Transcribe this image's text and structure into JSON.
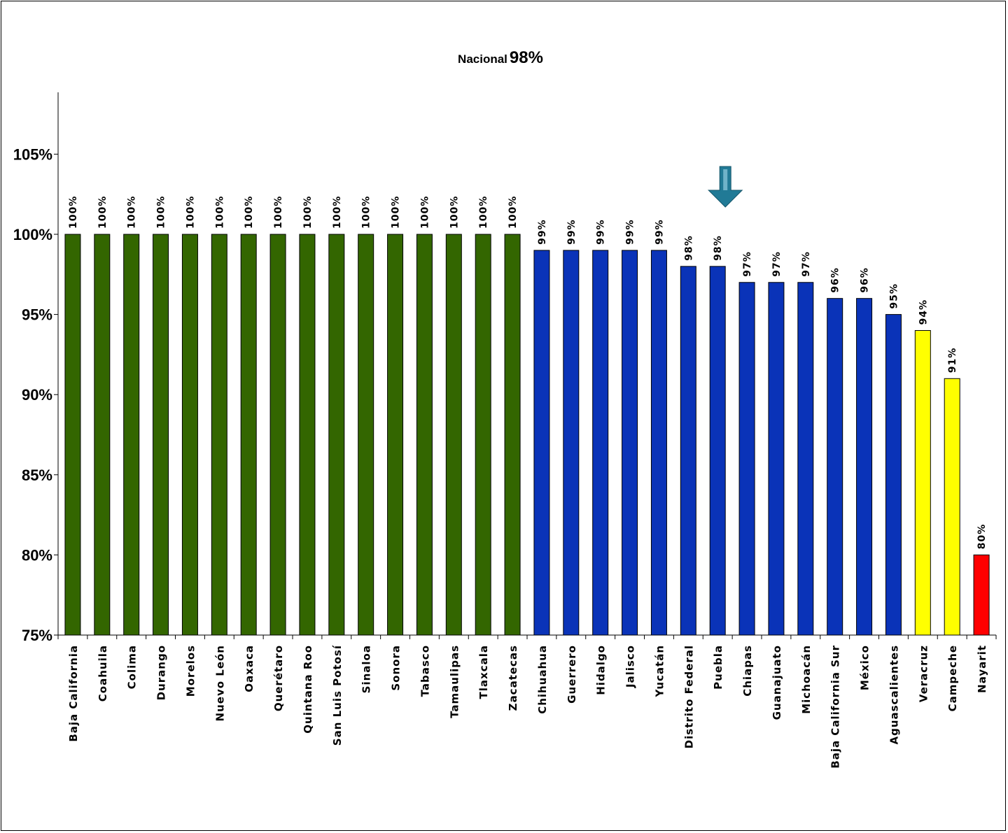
{
  "chart_data": {
    "type": "bar",
    "title_prefix": "Nacional",
    "title_value": "98%",
    "xlabel": "",
    "ylabel": "",
    "ylim": [
      75,
      110
    ],
    "yticks": [
      75,
      80,
      85,
      90,
      95,
      100,
      105
    ],
    "ytick_labels": [
      "75%",
      "80%",
      "85%",
      "90%",
      "95%",
      "100%",
      "105%"
    ],
    "grid": false,
    "legend": "none",
    "categories": [
      "Baja California",
      "Coahuila",
      "Colima",
      "Durango",
      "Morelos",
      "Nuevo León",
      "Oaxaca",
      "Querétaro",
      "Quintana Roo",
      "San Luis Potosí",
      "Sinaloa",
      "Sonora",
      "Tabasco",
      "Tamaulipas",
      "Tlaxcala",
      "Zacatecas",
      "Chihuahua",
      "Guerrero",
      "Hidalgo",
      "Jalisco",
      "Yucatán",
      "Distrito Federal",
      "Puebla",
      "Chiapas",
      "Guanajuato",
      "Michoacán",
      "Baja California Sur",
      "México",
      "Aguascalientes",
      "Veracruz",
      "Campeche",
      "Nayarit"
    ],
    "values": [
      100,
      100,
      100,
      100,
      100,
      100,
      100,
      100,
      100,
      100,
      100,
      100,
      100,
      100,
      100,
      100,
      99,
      99,
      99,
      99,
      99,
      98,
      98,
      97,
      97,
      97,
      96,
      96,
      95,
      94,
      91,
      80
    ],
    "value_labels": [
      "100%",
      "100%",
      "100%",
      "100%",
      "100%",
      "100%",
      "100%",
      "100%",
      "100%",
      "100%",
      "100%",
      "100%",
      "100%",
      "100%",
      "100%",
      "100%",
      "99%",
      "99%",
      "99%",
      "99%",
      "99%",
      "98%",
      "98%",
      "97%",
      "97%",
      "97%",
      "96%",
      "96%",
      "95%",
      "94%",
      "91%",
      "80%"
    ],
    "bar_colors": [
      "#336600",
      "#336600",
      "#336600",
      "#336600",
      "#336600",
      "#336600",
      "#336600",
      "#336600",
      "#336600",
      "#336600",
      "#336600",
      "#336600",
      "#336600",
      "#336600",
      "#336600",
      "#336600",
      "#0A33B8",
      "#0A33B8",
      "#0A33B8",
      "#0A33B8",
      "#0A33B8",
      "#0A33B8",
      "#0A33B8",
      "#0A33B8",
      "#0A33B8",
      "#0A33B8",
      "#0A33B8",
      "#0A33B8",
      "#0A33B8",
      "#FFFF00",
      "#FFFF00",
      "#FF0000"
    ],
    "marker": {
      "icon": "down-arrow-icon",
      "category_index": 22,
      "color": "#217A96"
    }
  }
}
